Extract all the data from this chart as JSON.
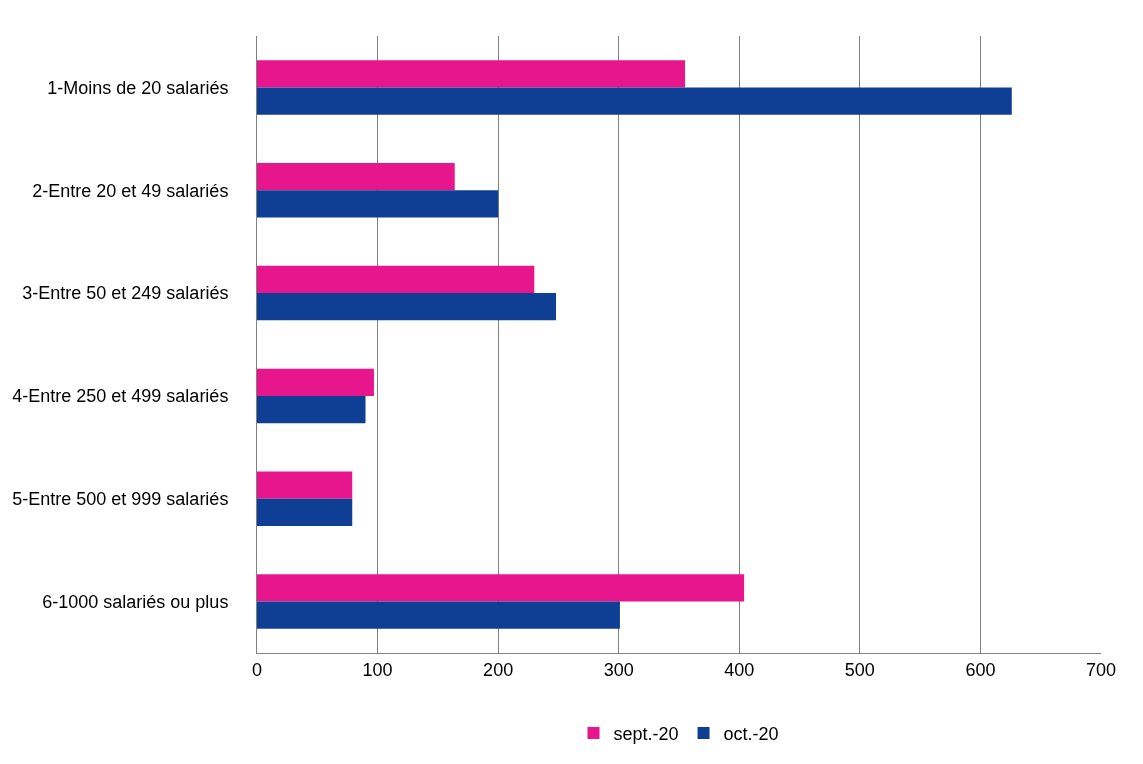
{
  "chart_data": {
    "type": "bar",
    "orientation": "horizontal",
    "categories": [
      "1-Moins de 20 salariés",
      "2-Entre 20 et 49 salariés",
      "3-Entre 50 et 249 salariés",
      "4-Entre 250 et 499 salariés",
      "5-Entre 500 et 999 salariés",
      "6-1000 salariés ou plus"
    ],
    "series": [
      {
        "name": "sept.-20",
        "color": "#e8168c",
        "values": [
          355,
          164,
          230,
          97,
          79,
          404
        ]
      },
      {
        "name": "oct.-20",
        "color": "#0f3f94",
        "values": [
          626,
          200,
          248,
          90,
          79,
          301
        ]
      }
    ],
    "xlim": [
      0,
      700
    ],
    "xticks": [
      0,
      100,
      200,
      300,
      400,
      500,
      600,
      700
    ],
    "grid": "x",
    "legend": "bottom"
  }
}
